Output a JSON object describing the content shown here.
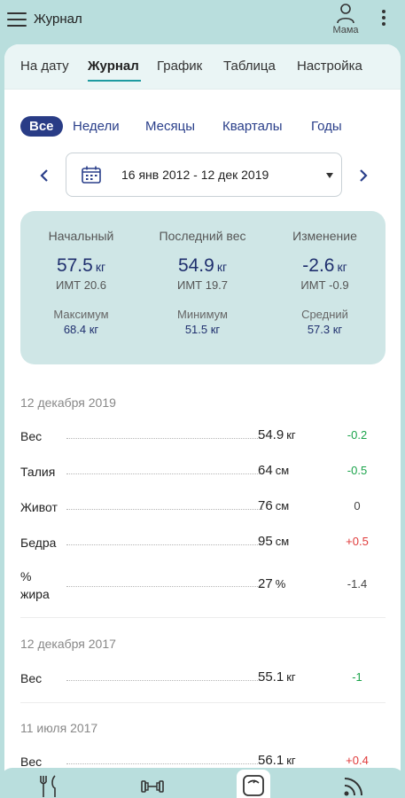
{
  "app": {
    "title": "Журнал",
    "profile_name": "Мама"
  },
  "tabs": [
    {
      "label": "На дату",
      "active": false
    },
    {
      "label": "Журнал",
      "active": true
    },
    {
      "label": "График",
      "active": false
    },
    {
      "label": "Таблица",
      "active": false
    },
    {
      "label": "Настройка",
      "active": false
    }
  ],
  "periods": [
    {
      "label": "Все",
      "active": true
    },
    {
      "label": "Недели",
      "active": false
    },
    {
      "label": "Месяцы",
      "active": false
    },
    {
      "label": "Кварталы",
      "active": false
    },
    {
      "label": "Годы",
      "active": false
    }
  ],
  "range": {
    "text": "16 янв 2012 - 12 дек 2019"
  },
  "summary": {
    "start": {
      "label": "Начальный",
      "value": "57.5",
      "unit": "кг",
      "bmi": "ИМТ 20.6"
    },
    "last": {
      "label": "Последний вес",
      "value": "54.9",
      "unit": "кг",
      "bmi": "ИМТ 19.7"
    },
    "change": {
      "label": "Изменение",
      "value": "-2.6",
      "unit": "кг",
      "bmi": "ИМТ -0.9"
    },
    "max": {
      "label": "Максимум",
      "value": "68.4 кг"
    },
    "min": {
      "label": "Минимум",
      "value": "51.5 кг"
    },
    "avg": {
      "label": "Средний",
      "value": "57.3 кг"
    }
  },
  "entries": [
    {
      "date": "12 декабря 2019",
      "rows": [
        {
          "label": "Вес",
          "value": "54.9",
          "unit": "кг",
          "change": "-0.2",
          "tone": "green"
        },
        {
          "label": "Талия",
          "value": "64",
          "unit": "см",
          "change": "-0.5",
          "tone": "green"
        },
        {
          "label": "Живот",
          "value": "76",
          "unit": "см",
          "change": "0",
          "tone": "gray"
        },
        {
          "label": "Бедра",
          "value": "95",
          "unit": "см",
          "change": "+0.5",
          "tone": "red"
        },
        {
          "label": "% жира",
          "value": "27",
          "unit": "%",
          "change": "-1.4",
          "tone": "gray"
        }
      ]
    },
    {
      "date": "12 декабря 2017",
      "rows": [
        {
          "label": "Вес",
          "value": "55.1",
          "unit": "кг",
          "change": "-1",
          "tone": "green"
        }
      ]
    },
    {
      "date": "11 июля 2017",
      "rows": [
        {
          "label": "Вес",
          "value": "56.1",
          "unit": "кг",
          "change": "+0.4",
          "tone": "red"
        }
      ]
    }
  ],
  "colors": {
    "accent": "#1f9ba1",
    "chip": "#293c86",
    "card": "#cfe6e6",
    "background": "#b9dedd"
  }
}
